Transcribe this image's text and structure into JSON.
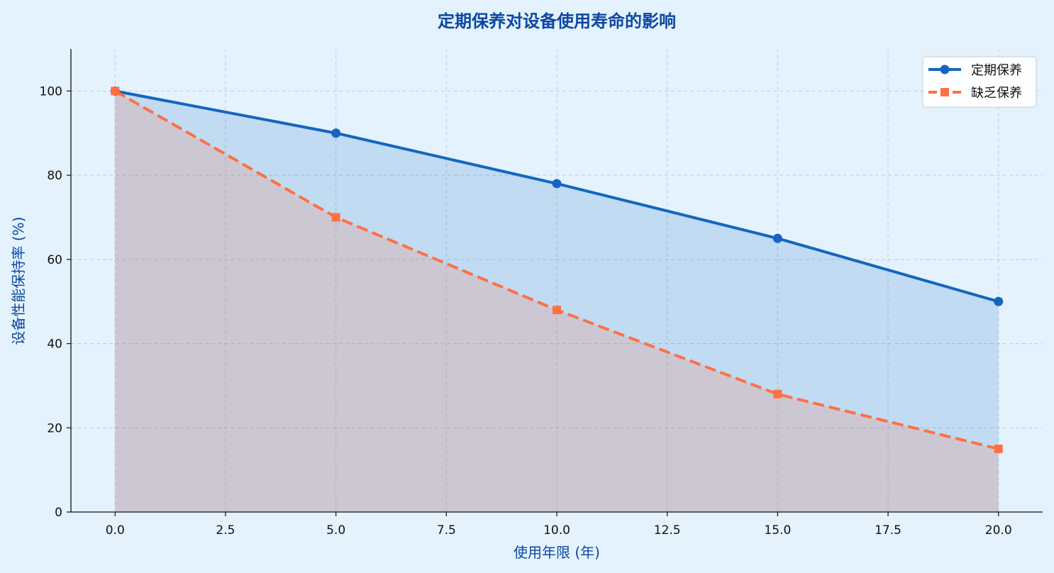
{
  "chart_data": {
    "type": "line",
    "title": "定期保养对设备使用寿命的影响",
    "xlabel": "使用年限 (年)",
    "ylabel": "设备性能保持率 (%)",
    "x": [
      0,
      5,
      10,
      15,
      20
    ],
    "xlim": [
      -1,
      21
    ],
    "ylim": [
      0,
      110
    ],
    "x_ticks": [
      0,
      2.5,
      5,
      7.5,
      10,
      12.5,
      15,
      17.5,
      20
    ],
    "x_tick_labels": [
      "0.0",
      "2.5",
      "5.0",
      "7.5",
      "10.0",
      "12.5",
      "15.0",
      "17.5",
      "20.0"
    ],
    "y_ticks": [
      0,
      20,
      40,
      60,
      80,
      100
    ],
    "y_tick_labels": [
      "0",
      "20",
      "40",
      "60",
      "80",
      "100"
    ],
    "grid": true,
    "legend_position": "top-right",
    "series": [
      {
        "name": "定期保养",
        "values": [
          100,
          90,
          78,
          65,
          50
        ],
        "color": "#1565c0",
        "marker": "circle",
        "line_style": "solid",
        "fill": true
      },
      {
        "name": "缺乏保养",
        "values": [
          100,
          70,
          48,
          28,
          15
        ],
        "color": "#ff7043",
        "marker": "square",
        "line_style": "dashed",
        "fill": true
      }
    ],
    "colors": {
      "background": "#e3f2fd",
      "title": "#0d47a1",
      "axis_label": "#0d47a1",
      "grid": "#b0bec5"
    }
  }
}
